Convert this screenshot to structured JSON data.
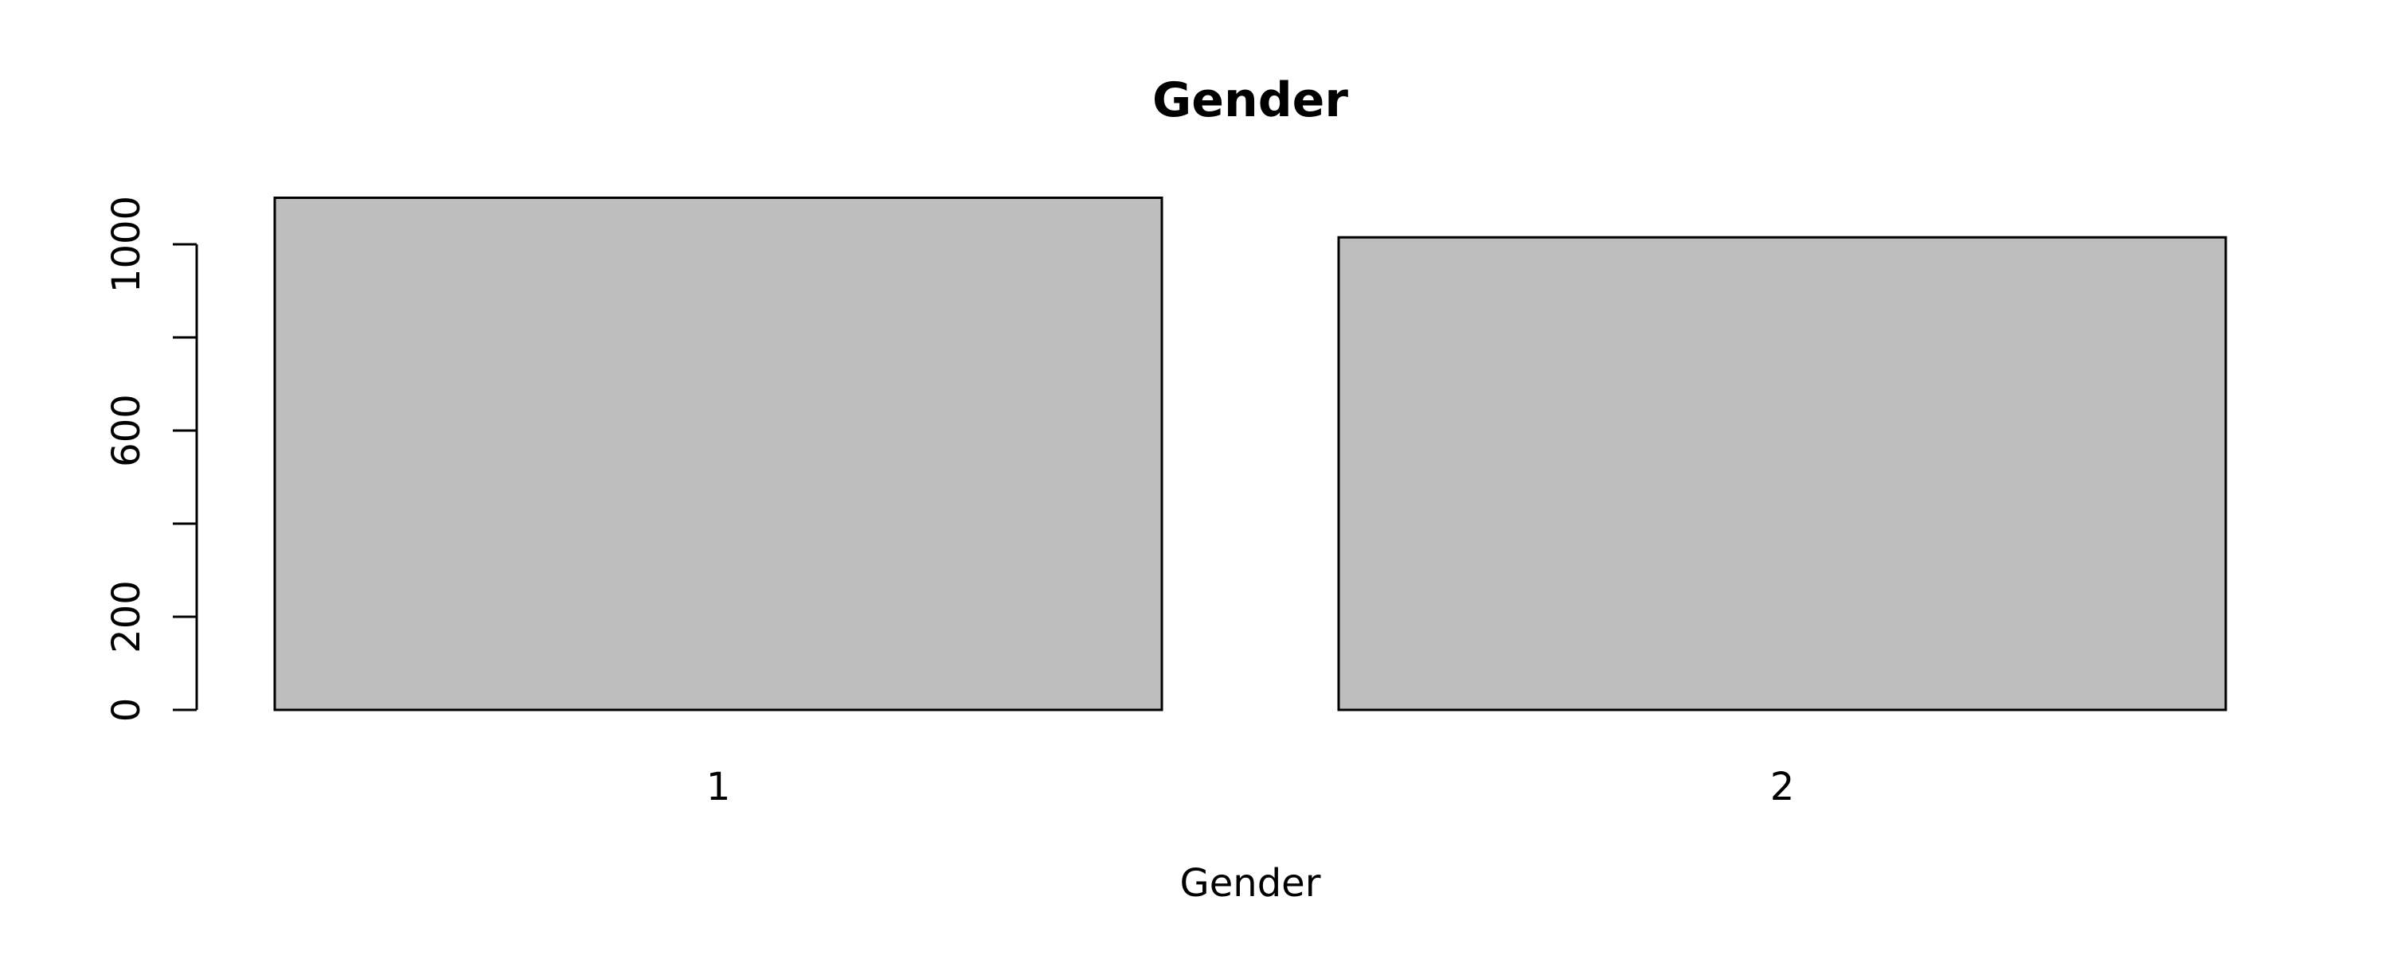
{
  "chart_data": {
    "type": "bar",
    "title": "Gender",
    "xlabel": "Gender",
    "ylabel": "",
    "categories": [
      "1",
      "2"
    ],
    "values": [
      1100,
      1015
    ],
    "ylim": [
      0,
      1100
    ],
    "yticks": [
      0,
      200,
      400,
      600,
      800,
      1000
    ],
    "ytick_labels": [
      "0",
      "200",
      "",
      "600",
      "",
      "1000"
    ],
    "grid": false,
    "legend": "none",
    "colors": {
      "bar_fill": "#bebebe",
      "bar_stroke": "#000000",
      "axis": "#000000"
    }
  }
}
